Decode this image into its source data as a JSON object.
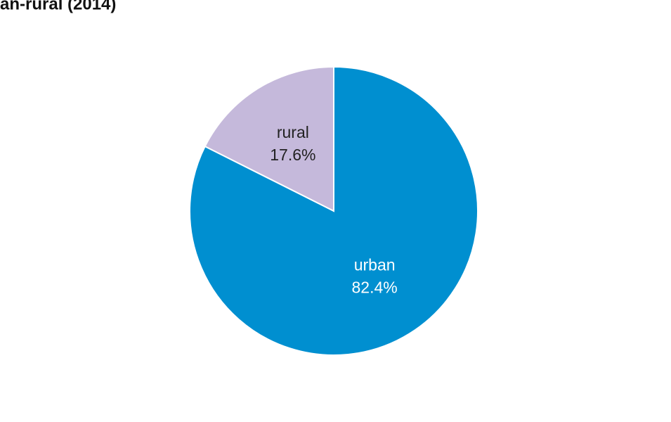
{
  "chart_data": {
    "type": "pie",
    "title": "an-rural (2014)",
    "categories": [
      "urban",
      "rural"
    ],
    "values": [
      82.4,
      17.6
    ],
    "value_labels": [
      "82.4%",
      "17.6%"
    ],
    "colors": [
      "#008fd0",
      "#c5b9db"
    ]
  }
}
